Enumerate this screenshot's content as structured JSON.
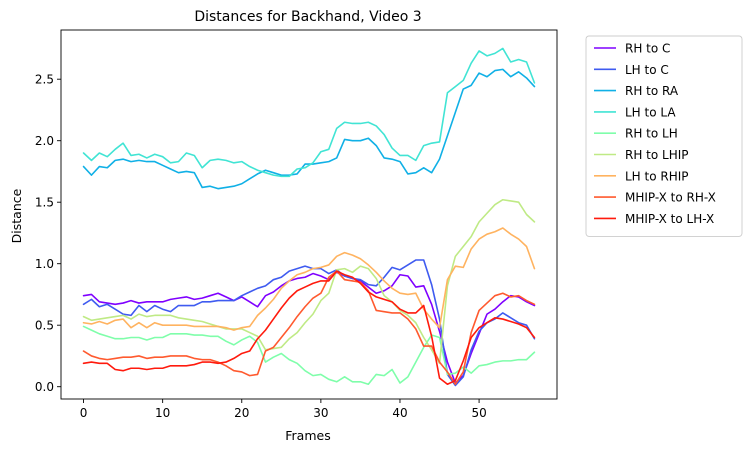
{
  "chart_data": {
    "type": "line",
    "title": "Distances for Backhand, Video 3",
    "xlabel": "Frames",
    "ylabel": "Distance",
    "xlim": [
      -2.85,
      59.85
    ],
    "ylim": [
      -0.1,
      2.9
    ],
    "xticks": [
      0,
      10,
      20,
      30,
      40,
      50
    ],
    "yticks": [
      0.0,
      0.5,
      1.0,
      1.5,
      2.0,
      2.5
    ],
    "yticklabels": [
      "0.0",
      "0.5",
      "1.0",
      "1.5",
      "2.0",
      "2.5"
    ],
    "grid": false,
    "legend_position": "outside-upper-right",
    "x": [
      0,
      1,
      2,
      3,
      4,
      5,
      6,
      7,
      8,
      9,
      10,
      11,
      12,
      13,
      14,
      15,
      16,
      17,
      18,
      19,
      20,
      21,
      22,
      23,
      24,
      25,
      26,
      27,
      28,
      29,
      30,
      31,
      32,
      33,
      34,
      35,
      36,
      37,
      38,
      39,
      40,
      41,
      42,
      43,
      44,
      45,
      46,
      47,
      48,
      49,
      50,
      51,
      52,
      53,
      54,
      55,
      56,
      57
    ],
    "series": [
      {
        "name": "RH to C",
        "color": "#7f00ff",
        "values": [
          0.74,
          0.75,
          0.69,
          0.68,
          0.67,
          0.68,
          0.7,
          0.68,
          0.69,
          0.69,
          0.69,
          0.71,
          0.72,
          0.73,
          0.71,
          0.72,
          0.74,
          0.76,
          0.73,
          0.7,
          0.73,
          0.69,
          0.65,
          0.74,
          0.77,
          0.82,
          0.86,
          0.88,
          0.89,
          0.92,
          0.9,
          0.87,
          0.93,
          0.9,
          0.88,
          0.86,
          0.81,
          0.76,
          0.78,
          0.82,
          0.91,
          0.9,
          0.81,
          0.82,
          0.67,
          0.45,
          0.2,
          0.03,
          0.09,
          0.27,
          0.43,
          0.59,
          0.63,
          0.69,
          0.74,
          0.73,
          0.69,
          0.66
        ]
      },
      {
        "name": "LH to C",
        "color": "#3f5bf0",
        "values": [
          0.67,
          0.71,
          0.65,
          0.67,
          0.63,
          0.59,
          0.58,
          0.66,
          0.61,
          0.66,
          0.63,
          0.61,
          0.66,
          0.66,
          0.66,
          0.69,
          0.69,
          0.7,
          0.7,
          0.7,
          0.74,
          0.77,
          0.8,
          0.82,
          0.87,
          0.89,
          0.94,
          0.96,
          0.98,
          0.96,
          0.96,
          0.92,
          0.95,
          0.9,
          0.88,
          0.87,
          0.83,
          0.82,
          0.89,
          0.97,
          0.95,
          0.99,
          1.03,
          1.03,
          0.83,
          0.55,
          0.1,
          0.01,
          0.08,
          0.3,
          0.45,
          0.52,
          0.55,
          0.6,
          0.56,
          0.52,
          0.5,
          0.39
        ]
      },
      {
        "name": "RH to RA",
        "color": "#10b0e6",
        "values": [
          1.79,
          1.72,
          1.79,
          1.78,
          1.84,
          1.85,
          1.83,
          1.84,
          1.83,
          1.83,
          1.8,
          1.77,
          1.74,
          1.75,
          1.74,
          1.62,
          1.63,
          1.61,
          1.62,
          1.63,
          1.65,
          1.69,
          1.73,
          1.76,
          1.74,
          1.72,
          1.72,
          1.73,
          1.81,
          1.81,
          1.82,
          1.83,
          1.86,
          2.01,
          2.0,
          2.0,
          2.02,
          1.96,
          1.86,
          1.85,
          1.83,
          1.73,
          1.74,
          1.78,
          1.74,
          1.85,
          2.04,
          2.23,
          2.42,
          2.45,
          2.55,
          2.52,
          2.57,
          2.58,
          2.52,
          2.56,
          2.51,
          2.44
        ]
      },
      {
        "name": "LH to LA",
        "color": "#41e4d4",
        "values": [
          1.9,
          1.84,
          1.9,
          1.87,
          1.93,
          1.98,
          1.88,
          1.89,
          1.86,
          1.89,
          1.87,
          1.82,
          1.83,
          1.9,
          1.88,
          1.78,
          1.84,
          1.85,
          1.84,
          1.82,
          1.83,
          1.79,
          1.76,
          1.74,
          1.72,
          1.71,
          1.71,
          1.77,
          1.78,
          1.82,
          1.91,
          1.93,
          2.1,
          2.15,
          2.14,
          2.14,
          2.15,
          2.12,
          2.05,
          1.94,
          1.88,
          1.88,
          1.84,
          1.96,
          1.98,
          1.99,
          2.39,
          2.44,
          2.49,
          2.63,
          2.73,
          2.69,
          2.71,
          2.75,
          2.64,
          2.66,
          2.64,
          2.47
        ]
      },
      {
        "name": "RH to LH",
        "color": "#7ffeaa",
        "values": [
          0.49,
          0.46,
          0.43,
          0.41,
          0.39,
          0.39,
          0.4,
          0.4,
          0.38,
          0.4,
          0.4,
          0.43,
          0.43,
          0.43,
          0.42,
          0.42,
          0.41,
          0.41,
          0.37,
          0.34,
          0.38,
          0.41,
          0.36,
          0.2,
          0.24,
          0.27,
          0.22,
          0.19,
          0.13,
          0.09,
          0.1,
          0.06,
          0.04,
          0.08,
          0.04,
          0.04,
          0.02,
          0.1,
          0.09,
          0.14,
          0.03,
          0.08,
          0.2,
          0.32,
          0.42,
          0.4,
          0.1,
          0.11,
          0.16,
          0.11,
          0.17,
          0.18,
          0.2,
          0.21,
          0.21,
          0.22,
          0.22,
          0.28
        ]
      },
      {
        "name": "RH to LHIP",
        "color": "#bfea85",
        "values": [
          0.57,
          0.54,
          0.55,
          0.56,
          0.57,
          0.58,
          0.55,
          0.59,
          0.57,
          0.58,
          0.58,
          0.58,
          0.56,
          0.55,
          0.54,
          0.53,
          0.51,
          0.49,
          0.47,
          0.47,
          0.47,
          0.44,
          0.41,
          0.3,
          0.31,
          0.32,
          0.39,
          0.44,
          0.52,
          0.59,
          0.7,
          0.76,
          0.95,
          0.96,
          0.93,
          0.98,
          0.96,
          0.88,
          0.74,
          0.69,
          0.62,
          0.58,
          0.52,
          0.4,
          0.3,
          0.19,
          0.82,
          1.06,
          1.14,
          1.22,
          1.34,
          1.41,
          1.48,
          1.52,
          1.51,
          1.5,
          1.4,
          1.34
        ]
      },
      {
        "name": "LH to RHIP",
        "color": "#ffb360",
        "values": [
          0.52,
          0.51,
          0.53,
          0.51,
          0.54,
          0.55,
          0.48,
          0.52,
          0.48,
          0.52,
          0.5,
          0.5,
          0.5,
          0.5,
          0.49,
          0.49,
          0.49,
          0.49,
          0.48,
          0.46,
          0.48,
          0.49,
          0.58,
          0.64,
          0.71,
          0.8,
          0.86,
          0.91,
          0.93,
          0.96,
          0.97,
          0.99,
          1.06,
          1.09,
          1.07,
          1.04,
          0.99,
          0.93,
          0.86,
          0.8,
          0.76,
          0.75,
          0.76,
          0.63,
          0.55,
          0.48,
          0.87,
          0.98,
          0.97,
          1.12,
          1.2,
          1.24,
          1.26,
          1.29,
          1.24,
          1.2,
          1.14,
          0.96
        ]
      },
      {
        "name": "MHIP-X to RH-X",
        "color": "#ff5a2f",
        "values": [
          0.29,
          0.25,
          0.23,
          0.22,
          0.23,
          0.24,
          0.24,
          0.25,
          0.23,
          0.24,
          0.24,
          0.25,
          0.25,
          0.25,
          0.23,
          0.22,
          0.22,
          0.2,
          0.17,
          0.13,
          0.12,
          0.09,
          0.1,
          0.29,
          0.32,
          0.4,
          0.48,
          0.57,
          0.65,
          0.72,
          0.76,
          0.89,
          0.94,
          0.87,
          0.86,
          0.85,
          0.78,
          0.62,
          0.61,
          0.6,
          0.6,
          0.55,
          0.47,
          0.33,
          0.33,
          0.2,
          0.12,
          0.02,
          0.12,
          0.44,
          0.62,
          0.68,
          0.74,
          0.76,
          0.73,
          0.74,
          0.7,
          0.67
        ]
      },
      {
        "name": "MHIP-X to LH-X",
        "color": "#ff1a0d",
        "values": [
          0.19,
          0.2,
          0.19,
          0.19,
          0.14,
          0.13,
          0.15,
          0.15,
          0.14,
          0.15,
          0.15,
          0.17,
          0.17,
          0.17,
          0.18,
          0.2,
          0.2,
          0.19,
          0.2,
          0.23,
          0.27,
          0.29,
          0.39,
          0.46,
          0.55,
          0.64,
          0.72,
          0.78,
          0.81,
          0.84,
          0.86,
          0.86,
          0.94,
          0.91,
          0.89,
          0.84,
          0.77,
          0.73,
          0.71,
          0.69,
          0.63,
          0.6,
          0.6,
          0.66,
          0.41,
          0.07,
          0.02,
          0.05,
          0.21,
          0.4,
          0.48,
          0.52,
          0.56,
          0.55,
          0.53,
          0.51,
          0.48,
          0.4
        ]
      }
    ]
  }
}
